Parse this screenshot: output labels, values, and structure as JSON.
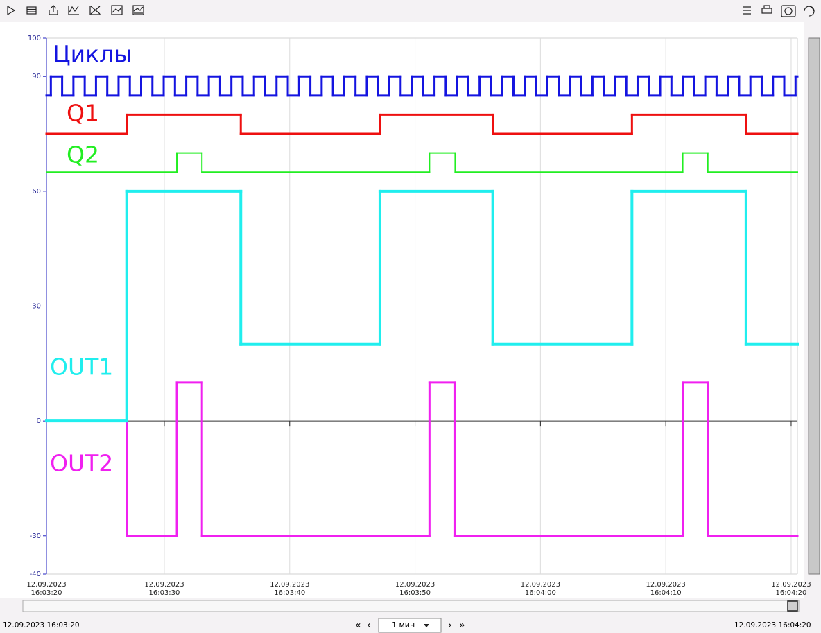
{
  "toolbar": {
    "range_start": "12.09.2023 16:03:20",
    "range_end": "12.09.2023 16:04:20",
    "interval": "1 мин"
  },
  "chart_data": {
    "type": "step",
    "xlim": [
      0.6,
      60.5
    ],
    "xticks": [
      {
        "value": 0.6,
        "label": [
          "12.09.2023",
          "16:03:20"
        ]
      },
      {
        "value": 10,
        "label": [
          "12.09.2023",
          "16:03:30"
        ]
      },
      {
        "value": 20,
        "label": [
          "12.09.2023",
          "16:03:40"
        ]
      },
      {
        "value": 30,
        "label": [
          "12.09.2023",
          "16:03:50"
        ]
      },
      {
        "value": 40,
        "label": [
          "12.09.2023",
          "16:04:00"
        ]
      },
      {
        "value": 50,
        "label": [
          "12.09.2023",
          "16:04:10"
        ]
      },
      {
        "value": 60,
        "label": [
          "12.09.2023",
          "16:04:20"
        ]
      }
    ],
    "ylim": [
      -40,
      100
    ],
    "yticks": [
      -40,
      -30,
      0,
      30,
      60,
      90,
      100
    ],
    "grid": true,
    "series": [
      {
        "name": "OUT2",
        "color": "#f020f0",
        "x": [
          0.6,
          7,
          11,
          13,
          31.15,
          33.2,
          51.35,
          53.35
        ],
        "values": [
          0,
          -30,
          10,
          -30,
          10,
          -30,
          10,
          -30
        ]
      },
      {
        "name": "OUT1",
        "color": "#20eeee",
        "x": [
          0.6,
          7,
          16.1,
          27.2,
          36.2,
          47.3,
          56.4
        ],
        "values": [
          0,
          60,
          20,
          60,
          20,
          60,
          20
        ]
      },
      {
        "name": "Q2",
        "color": "#22ee22",
        "x": [
          0.6,
          11,
          13,
          31.15,
          33.2,
          51.35,
          53.35
        ],
        "values": [
          65,
          70,
          65,
          70,
          65,
          70,
          65
        ]
      },
      {
        "name": "Q1",
        "color": "#ee1010",
        "x": [
          0.6,
          7,
          16.1,
          27.2,
          36.2,
          47.3,
          56.4
        ],
        "values": [
          75,
          80,
          75,
          80,
          75,
          80,
          75
        ]
      },
      {
        "name": "Циклы",
        "color": "#1414e0",
        "x": [
          0.6,
          0.95,
          1.85,
          2.75,
          3.65,
          4.55,
          5.45,
          6.35,
          7.25,
          8.15,
          9.05,
          9.95,
          10.85,
          11.75,
          12.65,
          13.55,
          14.45,
          15.35,
          16.25,
          17.15,
          18.05,
          18.95,
          19.85,
          20.75,
          21.65,
          22.55,
          23.45,
          24.35,
          25.25,
          26.15,
          27.05,
          27.95,
          28.85,
          29.75,
          30.65,
          31.55,
          32.45,
          33.35,
          34.25,
          35.15,
          36.05,
          36.95,
          37.85,
          38.75,
          39.65,
          40.55,
          41.45,
          42.35,
          43.25,
          44.15,
          45.05,
          45.95,
          46.85,
          47.75,
          48.65,
          49.55,
          50.45,
          51.35,
          52.25,
          53.15,
          54.05,
          54.95,
          55.85,
          56.75,
          57.65,
          58.55,
          59.45,
          60.35
        ],
        "values": [
          85,
          90,
          85,
          90,
          85,
          90,
          85,
          90,
          85,
          90,
          85,
          90,
          85,
          90,
          85,
          90,
          85,
          90,
          85,
          90,
          85,
          90,
          85,
          90,
          85,
          90,
          85,
          90,
          85,
          90,
          85,
          90,
          85,
          90,
          85,
          90,
          85,
          90,
          85,
          90,
          85,
          90,
          85,
          90,
          85,
          90,
          85,
          90,
          85,
          90,
          85,
          90,
          85,
          90,
          85,
          90,
          85,
          90,
          85,
          90,
          85,
          90,
          85,
          90,
          85,
          90,
          85,
          90
        ]
      }
    ]
  }
}
